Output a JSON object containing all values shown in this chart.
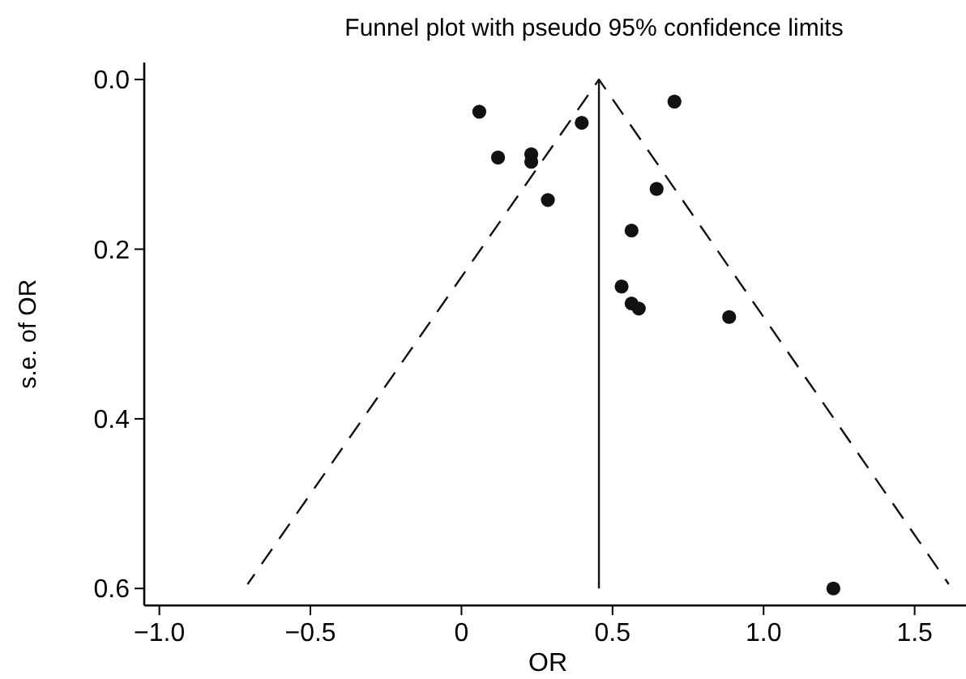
{
  "chart_data": {
    "type": "scatter",
    "title": "Funnel plot with pseudo 95% confidence limits",
    "xlabel": "OR",
    "ylabel": "s.e. of OR",
    "xlim": [
      -1.05,
      1.67
    ],
    "ylim": [
      0.62,
      -0.02
    ],
    "xticks": [
      {
        "value": -1,
        "label": "−1.0"
      },
      {
        "value": -0.5,
        "label": "−0.5"
      },
      0,
      0.5,
      {
        "value": 1,
        "label": "1.0"
      },
      1.5
    ],
    "yticks": [
      {
        "value": 0,
        "label": "0.0"
      },
      0.2,
      0.4,
      0.6
    ],
    "grid": false,
    "series": [
      {
        "color": "#111111",
        "marker": "circle",
        "x": [
          0.059,
          0.398,
          0.705,
          0.121,
          0.231,
          0.231,
          0.286,
          0.646,
          0.563,
          0.53,
          0.563,
          0.587,
          0.886,
          1.231
        ],
        "values": [
          0.038,
          0.051,
          0.026,
          0.092,
          0.088,
          0.097,
          0.142,
          0.129,
          0.178,
          0.244,
          0.264,
          0.27,
          0.28,
          0.6
        ]
      },
      {
        "type": "line",
        "color": "#111111",
        "marker": "none",
        "line_style": "solid",
        "x": [
          0.455,
          0.455
        ],
        "values": [
          0,
          0.6
        ]
      },
      {
        "type": "line",
        "color": "#111111",
        "marker": "none",
        "line_style": "dashed",
        "x": [
          -0.708,
          0.455,
          1.613
        ],
        "values": [
          0.595,
          0,
          0.595
        ]
      }
    ]
  }
}
